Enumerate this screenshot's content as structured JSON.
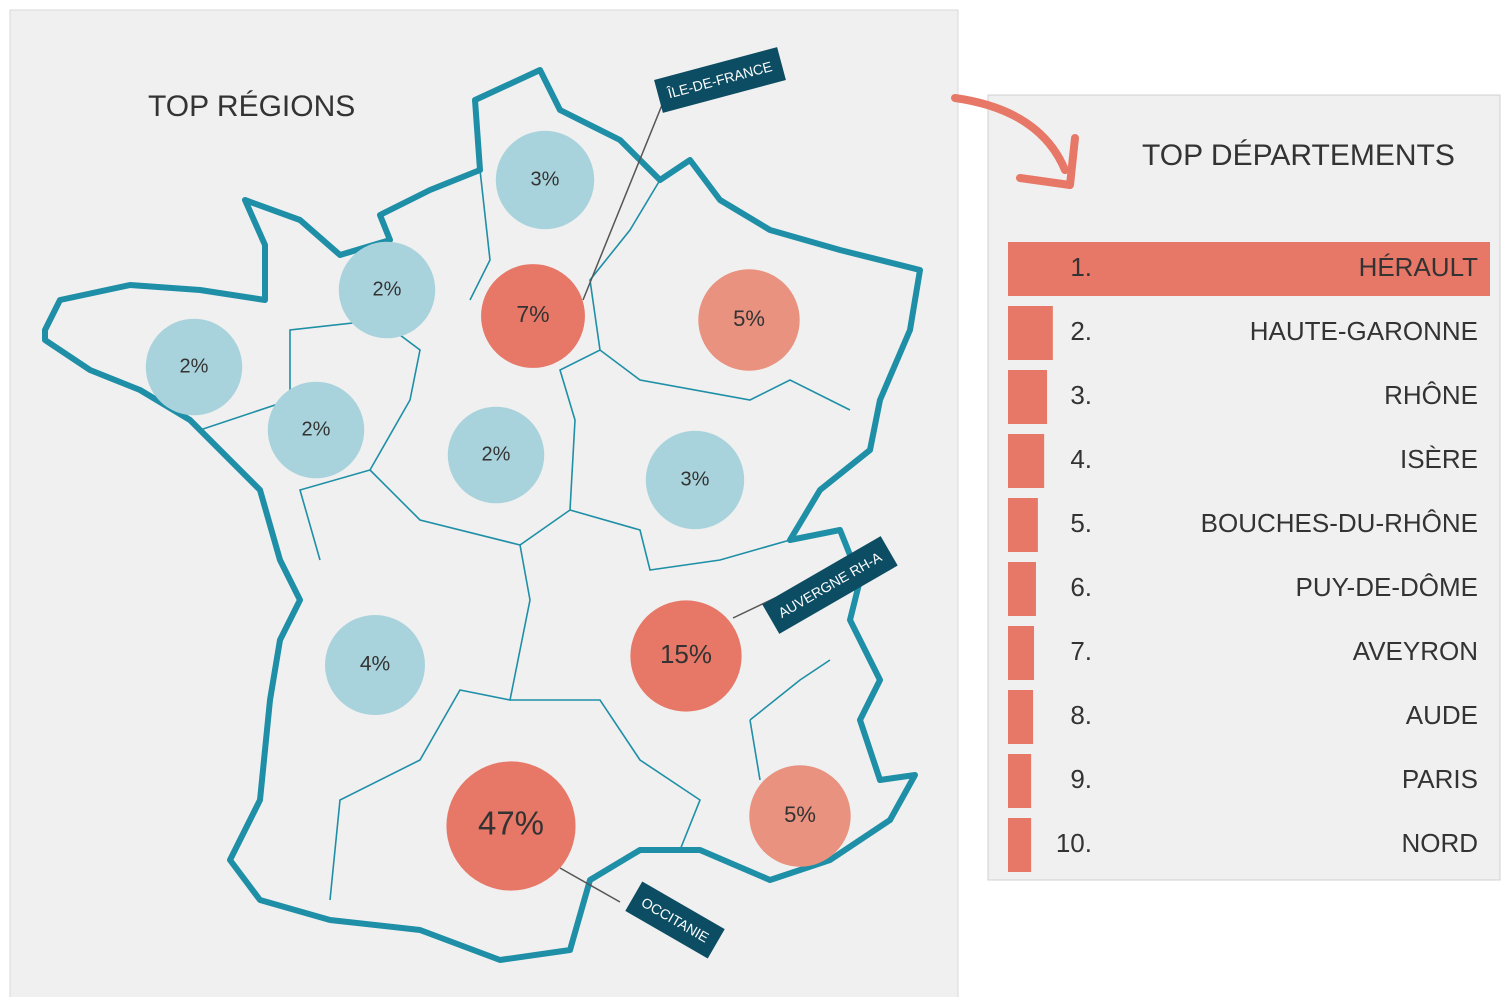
{
  "chart_data": [
    {
      "type": "bubble",
      "title": "TOP RÉGIONS",
      "categories": [
        null,
        null,
        "ÎLE-DE-FRANCE",
        null,
        null,
        null,
        null,
        null,
        null,
        "AUVERGNE RH-A",
        "OCCITANIE",
        null
      ],
      "values": [
        3,
        2,
        7,
        5,
        2,
        2,
        2,
        3,
        4,
        15,
        47,
        5
      ],
      "value_labels": [
        "3%",
        "2%",
        "7%",
        "5%",
        "2%",
        "2%",
        "2%",
        "3%",
        "4%",
        "15%",
        "47%",
        "5%"
      ],
      "colors": [
        "#a9d3dc",
        "#a9d3dc",
        "#e77766",
        "#e9927f",
        "#a9d3dc",
        "#a9d3dc",
        "#a9d3dc",
        "#a9d3dc",
        "#a9d3dc",
        "#e77766",
        "#e77766",
        "#e9927f"
      ]
    },
    {
      "type": "bar",
      "title": "TOP DÉPARTEMENTS",
      "ranks": [
        "1.",
        "2.",
        "3.",
        "4.",
        "5.",
        "6.",
        "7.",
        "8.",
        "9.",
        "10."
      ],
      "categories": [
        "HÉRAULT",
        "HAUTE-GARONNE",
        "RHÔNE",
        "ISÈRE",
        "BOUCHES-DU-RHÔNE",
        "PUY-DE-DÔME",
        "AVEYRON",
        "AUDE",
        "PARIS",
        "NORD"
      ],
      "values": [
        100,
        9.3,
        8.1,
        7.5,
        6.2,
        5.8,
        5.4,
        5.2,
        4.8,
        4.8
      ],
      "color": "#e77766"
    }
  ]
}
